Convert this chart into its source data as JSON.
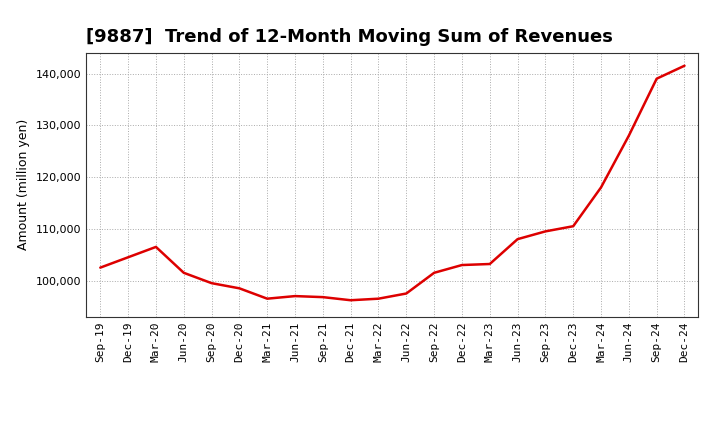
{
  "title": "[9887]  Trend of 12-Month Moving Sum of Revenues",
  "ylabel": "Amount (million yen)",
  "line_color": "#dd0000",
  "background_color": "#ffffff",
  "plot_bg_color": "#ffffff",
  "grid_color": "#aaaaaa",
  "x_labels": [
    "Sep-19",
    "Dec-19",
    "Mar-20",
    "Jun-20",
    "Sep-20",
    "Dec-20",
    "Mar-21",
    "Jun-21",
    "Sep-21",
    "Dec-21",
    "Mar-22",
    "Jun-22",
    "Sep-22",
    "Dec-22",
    "Mar-23",
    "Jun-23",
    "Sep-23",
    "Dec-23",
    "Mar-24",
    "Jun-24",
    "Sep-24",
    "Dec-24"
  ],
  "values": [
    102500,
    104500,
    106500,
    101500,
    99500,
    98500,
    96500,
    97000,
    96800,
    96200,
    96500,
    97500,
    101500,
    103000,
    103200,
    108000,
    109500,
    110500,
    118000,
    128000,
    139000,
    141500
  ],
  "ylim": [
    93000,
    144000
  ],
  "yticks": [
    100000,
    110000,
    120000,
    130000,
    140000
  ],
  "figsize": [
    7.2,
    4.4
  ],
  "dpi": 100,
  "title_fontsize": 13,
  "axis_label_fontsize": 9,
  "tick_fontsize": 8
}
